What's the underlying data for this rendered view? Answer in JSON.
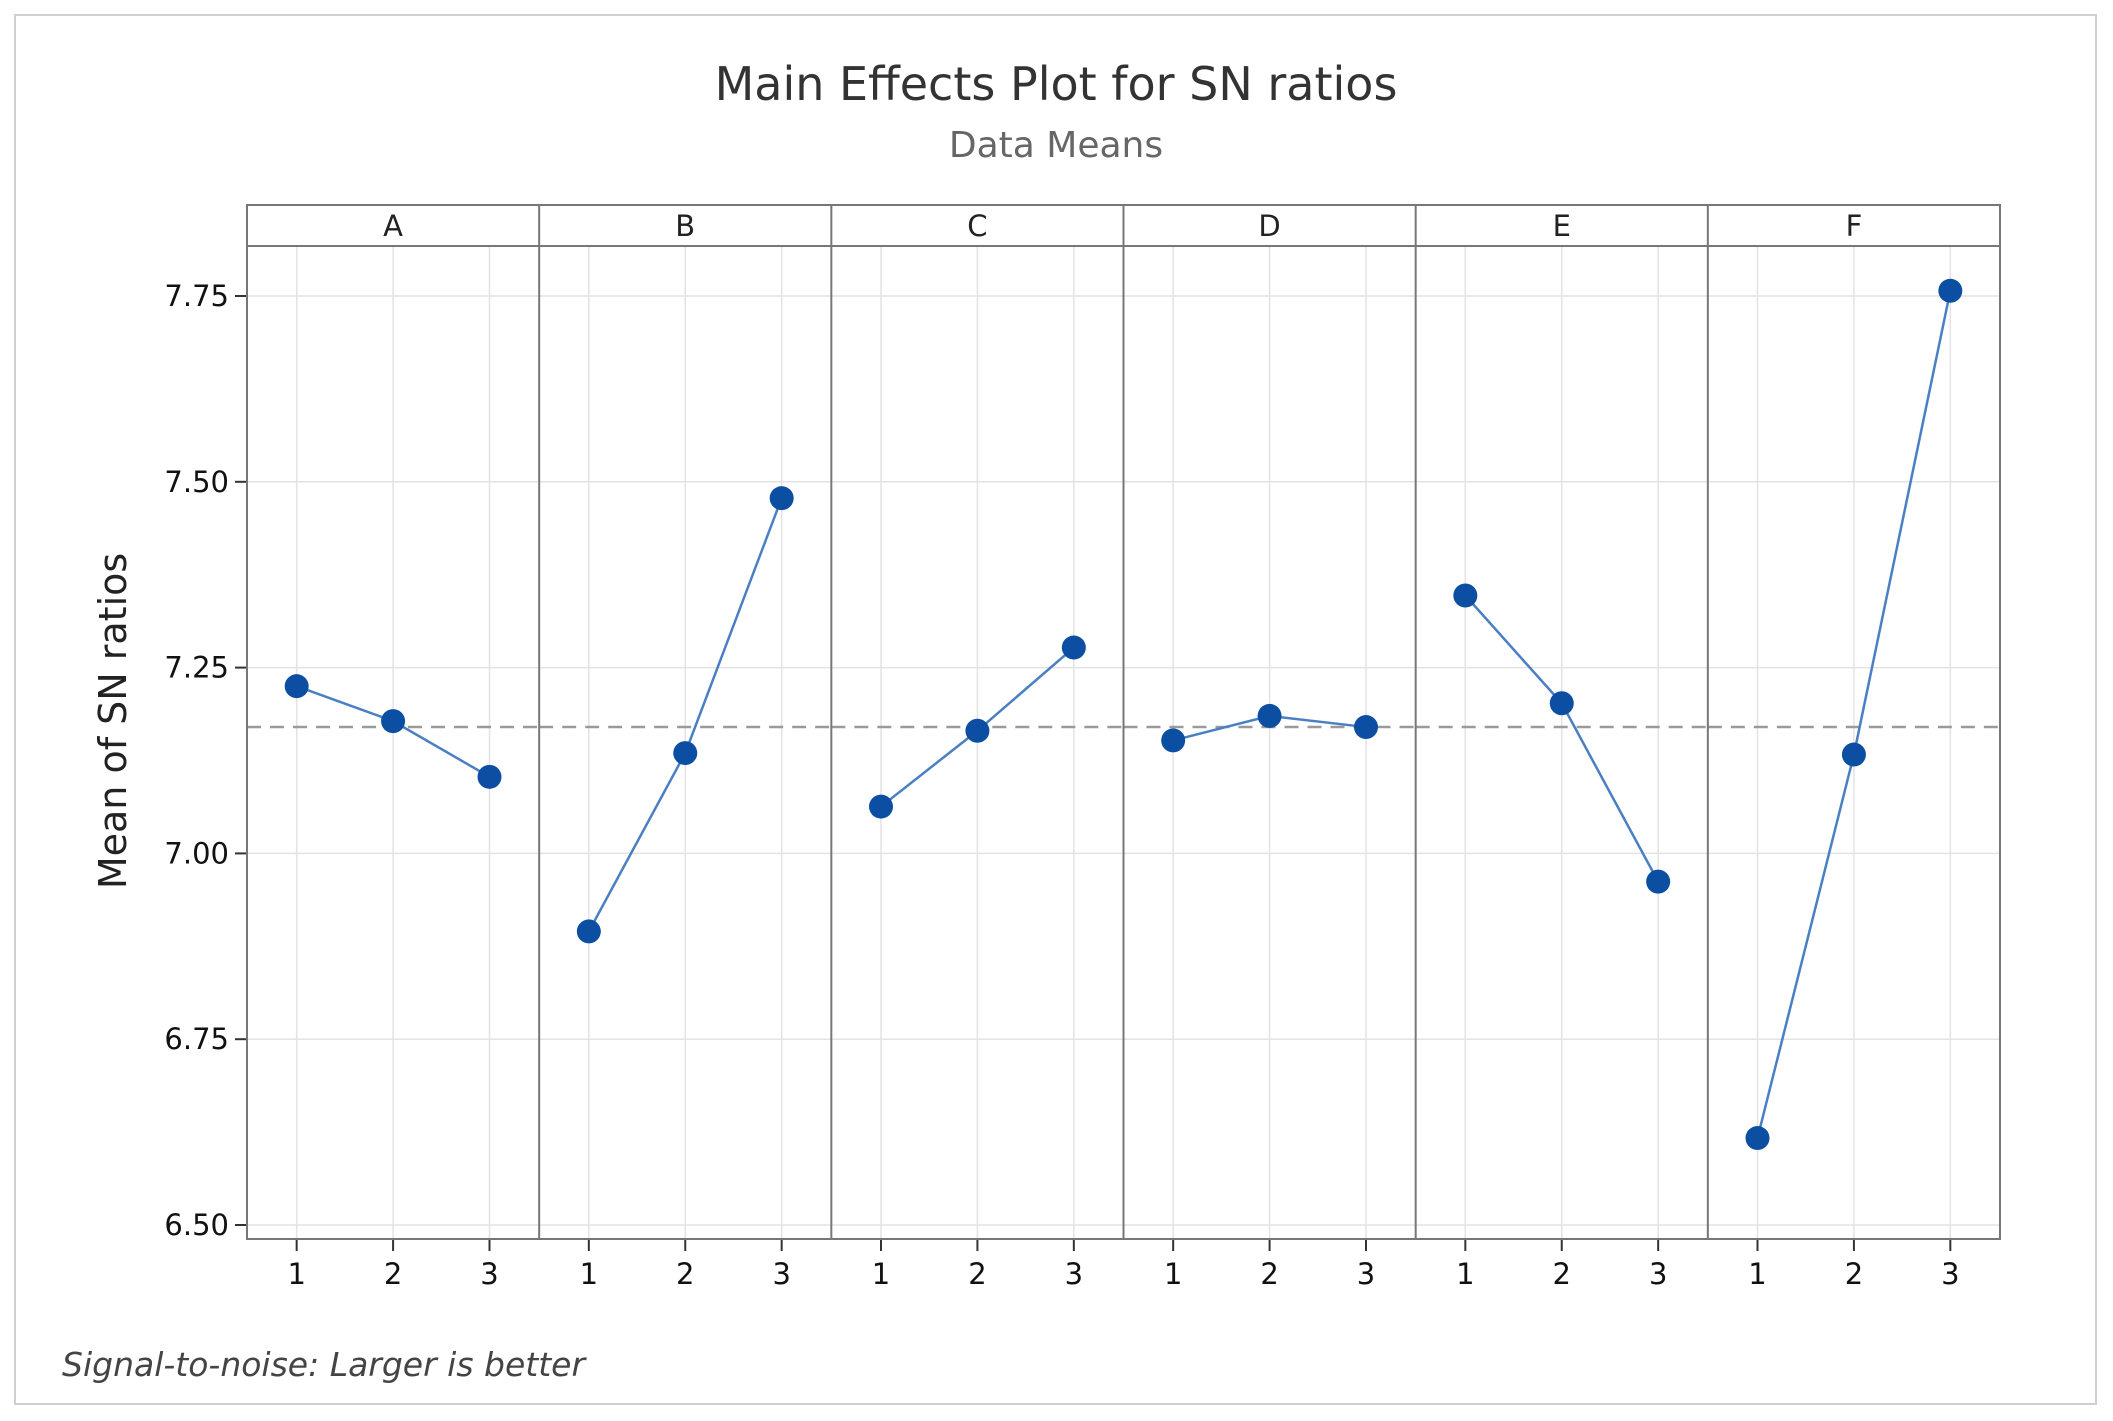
{
  "chart_data": {
    "type": "line",
    "title": "Main Effects Plot for SN ratios",
    "subtitle": "Data Means",
    "ylabel": "Mean of SN ratios",
    "footnote": "Signal-to-noise: Larger is better",
    "ylim": [
      6.48,
      7.82
    ],
    "yticks": [
      6.5,
      6.75,
      7.0,
      7.25,
      7.5,
      7.75
    ],
    "ytick_labels": [
      "6.50",
      "6.75",
      "7.00",
      "7.25",
      "7.50",
      "7.75"
    ],
    "levels": [
      "1",
      "2",
      "3"
    ],
    "reference_mean": 7.17,
    "grid": true,
    "series": [
      {
        "name": "A",
        "values": [
          7.225,
          7.178,
          7.103
        ]
      },
      {
        "name": "B",
        "values": [
          6.895,
          7.135,
          7.478
        ]
      },
      {
        "name": "C",
        "values": [
          7.063,
          7.165,
          7.277
        ]
      },
      {
        "name": "D",
        "values": [
          7.152,
          7.185,
          7.17
        ]
      },
      {
        "name": "E",
        "values": [
          7.347,
          7.202,
          6.962
        ]
      },
      {
        "name": "F",
        "values": [
          6.617,
          7.133,
          7.757
        ]
      }
    ],
    "colors": {
      "line": "#4a7fc4",
      "marker": "#0b4ea2",
      "reference": "#9a9a9a",
      "grid": "#e3e3e3",
      "frame": "#777777"
    }
  }
}
